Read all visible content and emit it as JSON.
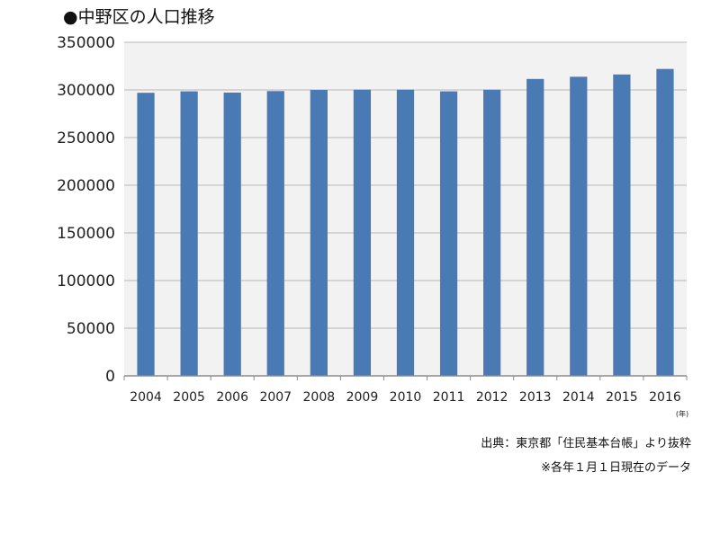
{
  "chart_data": {
    "type": "bar",
    "title": "●中野区の人口推移",
    "categories": [
      "2004",
      "2005",
      "2006",
      "2007",
      "2008",
      "2009",
      "2010",
      "2011",
      "2012",
      "2013",
      "2014",
      "2015",
      "2016"
    ],
    "values": [
      297000,
      298500,
      297200,
      298800,
      300000,
      300300,
      300300,
      298500,
      300200,
      311500,
      313800,
      316200,
      322000
    ],
    "x_unit": "(年)",
    "ylim": [
      0,
      350000
    ],
    "yticks": [
      0,
      50000,
      100000,
      150000,
      200000,
      250000,
      300000,
      350000
    ],
    "grid": true,
    "legend": "none",
    "colors": {
      "bar": "#4a7ab4",
      "plot_bg": "#f2f2f2",
      "grid": "#b8b8b8",
      "axis": "#8c8c8c"
    }
  },
  "source": "出典：東京都「住民基本台帳」より抜粋",
  "note": "※各年１月１日現在のデータ"
}
